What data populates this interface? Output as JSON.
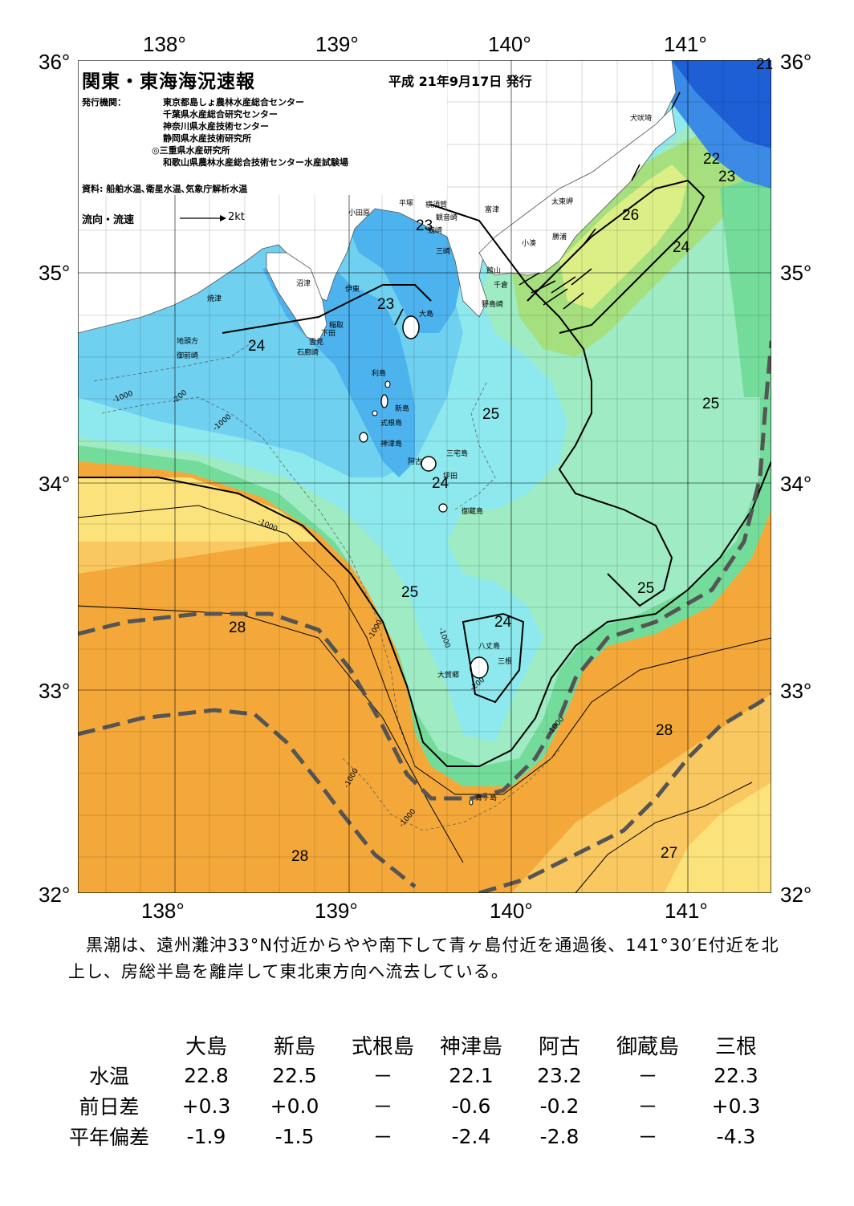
{
  "title": "関東・東海海況速報",
  "issue_date": "平成 21年9月17日 発行",
  "issuers_label": "発行機関：",
  "issuers": [
    "東京都島しょ農林水産総合センター",
    "千葉県水産総合研究センター",
    "神奈川県水産技術センター",
    "静岡県水産技術研究所",
    "◎三重県水産研究所",
    "和歌山県農林水産総合技術センター水産試験場"
  ],
  "sources": "資料: 船舶水温､衛星水温､気象庁解析水温",
  "legend": {
    "label": "流向・流速",
    "scale": "2kt"
  },
  "lon_ticks": [
    "138°",
    "139°",
    "140°",
    "141°"
  ],
  "lat_ticks": [
    "36°",
    "35°",
    "34°",
    "33°",
    "32°"
  ],
  "colors": {
    "t21": "#1e5fd6",
    "t22": "#3a8ae6",
    "t23": "#4db3ee",
    "t23b": "#6fd0f0",
    "t24": "#8ee9ee",
    "t25": "#9eebc4",
    "t25b": "#74dc9a",
    "t26": "#a6e07e",
    "t26b": "#dcef86",
    "t27": "#fbe27a",
    "t27b": "#f9c860",
    "t28": "#f5a83a",
    "land": "#ffffff",
    "kuroshio_axis": "#555555"
  },
  "place_names": [
    "犬吠埼",
    "太東岬",
    "勝浦",
    "小湊",
    "富津",
    "館山",
    "千倉",
    "野島崎",
    "平塚",
    "横須賀",
    "観音崎",
    "剱崎",
    "三崎",
    "小田原",
    "沼津",
    "伊東",
    "焼津",
    "稲取",
    "下田",
    "雲見",
    "石廊崎",
    "地頭方",
    "御前崎",
    "大島",
    "利島",
    "新島",
    "式根島",
    "神津島",
    "三宅島",
    "阿古",
    "坪田",
    "御蔵島",
    "八丈島",
    "三根",
    "大賀郷",
    "青ヶ島"
  ],
  "isotherm_labels": [
    "21",
    "22",
    "23",
    "26",
    "24",
    "23",
    "23",
    "24",
    "25",
    "25",
    "24",
    "25",
    "25",
    "24",
    "28",
    "28",
    "28",
    "27"
  ],
  "depth_labels": [
    "-1000",
    "-200"
  ],
  "description": "　黒潮は、遠州灘沖33°N付近からやや南下して青ヶ島付近を通過後、141°30′E付近を北上し、房総半島を離岸して東北東方向へ流去している。",
  "table": {
    "corner": "",
    "columns": [
      "大島",
      "新島",
      "式根島",
      "神津島",
      "阿古",
      "御蔵島",
      "三根"
    ],
    "rows": [
      {
        "label": "水温",
        "values": [
          "22.8",
          "22.5",
          "－",
          "22.1",
          "23.2",
          "－",
          "22.3"
        ]
      },
      {
        "label": "前日差",
        "values": [
          "+0.3",
          "+0.0",
          "－",
          "-0.6",
          "-0.2",
          "－",
          "+0.3"
        ]
      },
      {
        "label": "平年偏差",
        "values": [
          "-1.9",
          "-1.5",
          "－",
          "-2.4",
          "-2.8",
          "－",
          "-4.3"
        ]
      }
    ]
  }
}
